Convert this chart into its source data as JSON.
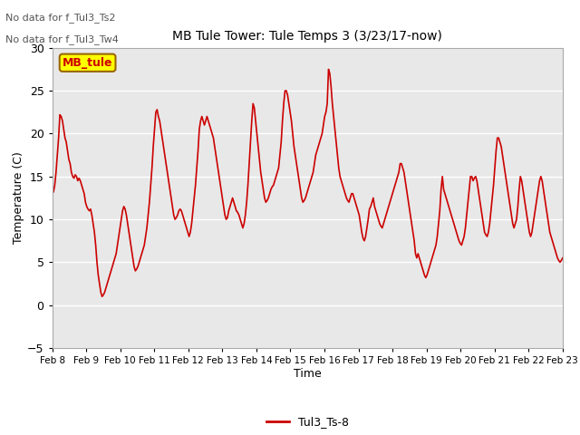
{
  "title": "MB Tule Tower: Tule Temps 3 (3/23/17-now)",
  "xlabel": "Time",
  "ylabel": "Temperature (C)",
  "annotation1": "No data for f_Tul3_Ts2",
  "annotation2": "No data for f_Tul3_Tw4",
  "legend_label": "Tul3_Ts-8",
  "legend_box_label": "MB_tule",
  "legend_box_color": "#ffff00",
  "legend_box_border": "#996600",
  "legend_box_text_color": "#cc0000",
  "ylim": [
    -5,
    30
  ],
  "yticks": [
    -5,
    0,
    5,
    10,
    15,
    20,
    25,
    30
  ],
  "line_color": "#cc0000",
  "line_width": 1.2,
  "background_color": "#ffffff",
  "plot_bg_color": "#e8e8e8",
  "grid_color": "#ffffff",
  "x_labels": [
    "Feb 8",
    "Feb 9",
    "Feb 10",
    "Feb 11",
    "Feb 12",
    "Feb 13",
    "Feb 14",
    "Feb 15",
    "Feb 16",
    "Feb 17",
    "Feb 18",
    "Feb 19",
    "Feb 20",
    "Feb 21",
    "Feb 22",
    "Feb 23"
  ],
  "figsize": [
    6.4,
    4.8
  ],
  "dpi": 100,
  "y_data": [
    13.0,
    13.2,
    14.0,
    15.5,
    17.5,
    19.5,
    22.2,
    22.0,
    21.5,
    20.5,
    19.5,
    19.0,
    18.0,
    17.0,
    16.5,
    15.5,
    15.0,
    14.8,
    15.2,
    15.0,
    14.5,
    14.8,
    14.5,
    14.0,
    13.5,
    13.0,
    12.0,
    11.5,
    11.2,
    11.0,
    11.2,
    10.5,
    9.5,
    8.5,
    7.0,
    5.0,
    3.5,
    2.5,
    1.5,
    1.0,
    1.2,
    1.5,
    2.0,
    2.5,
    3.0,
    3.5,
    4.0,
    4.5,
    5.0,
    5.5,
    6.0,
    7.0,
    8.0,
    9.0,
    10.0,
    11.0,
    11.5,
    11.2,
    10.5,
    9.5,
    8.5,
    7.5,
    6.5,
    5.5,
    4.5,
    4.0,
    4.2,
    4.5,
    5.0,
    5.5,
    6.0,
    6.5,
    7.0,
    8.0,
    9.0,
    10.5,
    12.0,
    14.0,
    16.0,
    18.5,
    20.5,
    22.5,
    22.8,
    22.0,
    21.5,
    20.5,
    19.5,
    18.5,
    17.5,
    16.5,
    15.5,
    14.5,
    13.5,
    12.5,
    11.5,
    10.5,
    10.0,
    10.2,
    10.5,
    11.0,
    11.2,
    11.0,
    10.5,
    10.0,
    9.5,
    9.0,
    8.5,
    8.0,
    8.5,
    9.5,
    11.0,
    12.5,
    14.0,
    16.0,
    18.0,
    20.5,
    21.5,
    22.0,
    21.5,
    21.0,
    21.5,
    22.0,
    21.5,
    21.0,
    20.5,
    20.0,
    19.5,
    18.5,
    17.5,
    16.5,
    15.5,
    14.5,
    13.5,
    12.5,
    11.5,
    10.5,
    10.0,
    10.2,
    11.0,
    11.5,
    12.0,
    12.5,
    12.0,
    11.5,
    11.0,
    10.8,
    10.5,
    10.0,
    9.5,
    9.0,
    9.5,
    10.5,
    12.0,
    14.0,
    16.5,
    19.0,
    21.5,
    23.5,
    23.0,
    21.5,
    20.0,
    18.5,
    17.0,
    15.5,
    14.5,
    13.5,
    12.5,
    12.0,
    12.2,
    12.5,
    13.0,
    13.5,
    13.8,
    14.0,
    14.5,
    15.0,
    15.5,
    16.0,
    17.5,
    19.0,
    21.5,
    23.5,
    25.0,
    25.0,
    24.5,
    23.5,
    22.5,
    21.5,
    20.0,
    18.5,
    17.5,
    16.5,
    15.5,
    14.5,
    13.5,
    12.5,
    12.0,
    12.2,
    12.5,
    13.0,
    13.5,
    14.0,
    14.5,
    15.0,
    15.5,
    16.5,
    17.5,
    18.0,
    18.5,
    19.0,
    19.5,
    20.0,
    21.0,
    22.0,
    22.5,
    23.5,
    27.5,
    27.0,
    25.5,
    23.5,
    22.0,
    20.5,
    19.0,
    17.5,
    16.0,
    15.0,
    14.5,
    14.0,
    13.5,
    13.0,
    12.5,
    12.2,
    12.0,
    12.5,
    13.0,
    13.0,
    12.5,
    12.0,
    11.5,
    11.0,
    10.5,
    9.5,
    8.5,
    7.8,
    7.5,
    8.0,
    9.0,
    10.0,
    11.2,
    11.5,
    12.0,
    12.5,
    11.5,
    11.0,
    10.5,
    10.0,
    9.5,
    9.2,
    9.0,
    9.5,
    10.0,
    10.5,
    11.0,
    11.5,
    12.0,
    12.5,
    13.0,
    13.5,
    14.0,
    14.5,
    15.0,
    15.5,
    16.5,
    16.5,
    16.0,
    15.5,
    14.5,
    13.5,
    12.5,
    11.5,
    10.5,
    9.5,
    8.5,
    7.5,
    6.0,
    5.5,
    6.0,
    5.5,
    5.0,
    4.5,
    4.0,
    3.5,
    3.2,
    3.5,
    4.0,
    4.5,
    5.0,
    5.5,
    6.0,
    6.5,
    7.0,
    8.0,
    9.5,
    11.0,
    13.5,
    15.0,
    13.5,
    13.0,
    12.5,
    12.0,
    11.5,
    11.0,
    10.5,
    10.0,
    9.5,
    9.0,
    8.5,
    8.0,
    7.5,
    7.2,
    7.0,
    7.5,
    8.0,
    9.0,
    10.5,
    12.0,
    13.5,
    15.0,
    15.0,
    14.5,
    14.8,
    15.0,
    14.5,
    13.5,
    12.5,
    11.5,
    10.5,
    9.5,
    8.5,
    8.2,
    8.0,
    8.5,
    9.5,
    11.0,
    12.5,
    14.0,
    16.0,
    18.0,
    19.5,
    19.5,
    19.0,
    18.5,
    17.5,
    16.5,
    15.5,
    14.5,
    13.5,
    12.5,
    11.5,
    10.5,
    9.5,
    9.0,
    9.5,
    10.0,
    11.5,
    13.5,
    15.0,
    14.5,
    13.5,
    12.5,
    11.5,
    10.5,
    9.5,
    8.5,
    8.0,
    8.5,
    9.5,
    10.5,
    11.5,
    12.5,
    13.5,
    14.5,
    15.0,
    14.5,
    13.5,
    12.5,
    11.5,
    10.5,
    9.5,
    8.5,
    8.0,
    7.5,
    7.0,
    6.5,
    6.0,
    5.5,
    5.2,
    5.0,
    5.2,
    5.5
  ]
}
